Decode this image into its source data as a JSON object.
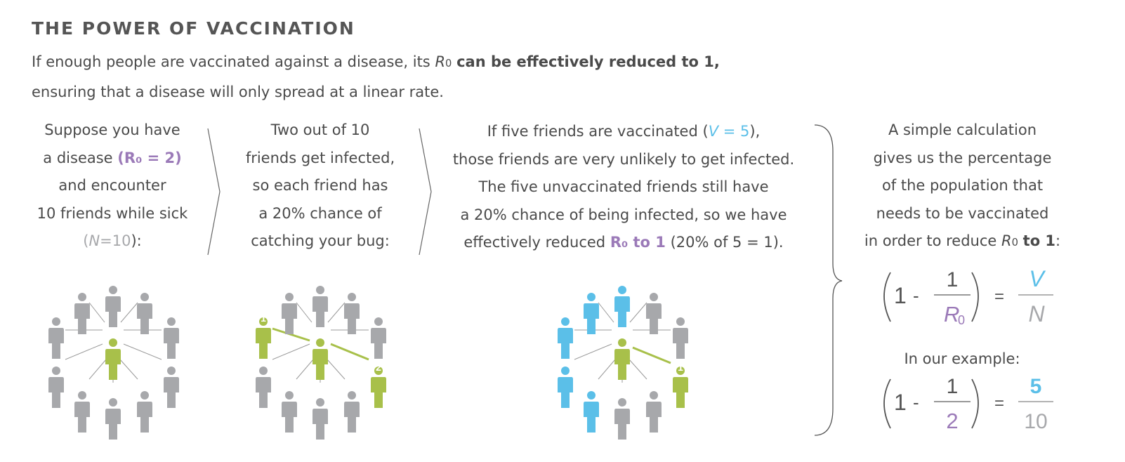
{
  "title": "THE POWER OF VACCINATION",
  "intro": {
    "l1_pre": "If enough people are vaccinated against a disease, its",
    "r": "R",
    "sub0": "0",
    "l1_bold": "can be effectively reduced to 1,",
    "l2": "ensuring that a disease will only spread at a linear rate."
  },
  "col1": {
    "l1": "Suppose you have",
    "l2_pre": "a disease",
    "l2_tag": "(R₀ = 2)",
    "l3": "and encounter",
    "l4": "10 friends while sick",
    "l5_open": "(",
    "l5_n": "N",
    "l5_eq": "=10",
    "l5_close": "):"
  },
  "col2": {
    "l1": "Two out of 10",
    "l2": "friends get infected,",
    "l3": "so each friend has",
    "l4": "a 20% chance of",
    "l5": "catching your bug:"
  },
  "col3": {
    "l1_pre": "If five friends are vaccinated (",
    "l1_v": "V",
    "l1_eq": " = 5",
    "l1_post": "),",
    "l2": "those friends are very unlikely to get infected.",
    "l3": "The five unvaccinated friends still have",
    "l4": "a 20% chance of being infected, so we have",
    "l5_pre": "effectively reduced",
    "l5_bold": "R₀ to 1",
    "l5_post": "(20% of 5 = 1)."
  },
  "col4": {
    "l1": "A simple calculation",
    "l2": "gives us the percentage",
    "l3": "of the population that",
    "l4": "needs to be vaccinated",
    "l5_pre": "in order to reduce",
    "l5_r": "R",
    "l5_sub": "0",
    "l5_bold": "to 1",
    "l5_post": ":"
  },
  "formula": {
    "one": "1",
    "minus": "-",
    "num": "1",
    "den_r": "R",
    "den_sub": "0",
    "equals": "=",
    "rhs_num": "V",
    "rhs_den": "N"
  },
  "example": {
    "label": "In our example:",
    "one": "1",
    "minus": "-",
    "num": "1",
    "den": "2",
    "equals": "=",
    "rhs_num": "5",
    "rhs_den": "10"
  },
  "diagram1": {
    "center_color": "#a8c04a",
    "friend_color": "#a7a8ab"
  },
  "diagram2": {
    "badge_1": "1",
    "badge_2": "2",
    "infected_color": "#a8c04a"
  },
  "diagram3": {
    "badge_1": "1",
    "vaccinated_color": "#5bbfe8"
  },
  "colors": {
    "gray": "#a7a8ab",
    "green": "#a8c04a",
    "blue": "#5bbfe8",
    "purple": "#9b7ab8"
  }
}
